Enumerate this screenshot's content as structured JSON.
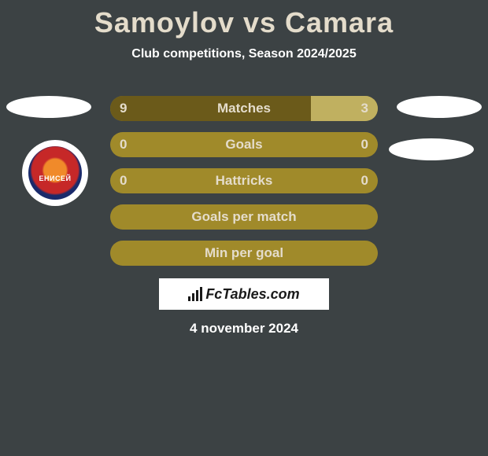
{
  "title": "Samoylov vs Camara",
  "subtitle": "Club competitions, Season 2024/2025",
  "date": "4 november 2024",
  "badge": {
    "text": "ЕНИСЕЙ"
  },
  "colors": {
    "bar_base": "#a08a2a",
    "bar_fill_left": "#6b5a1a",
    "bar_fill_right": "#c0b060",
    "bar_text": "#e4dccb",
    "background": "#3c4244"
  },
  "bars": [
    {
      "label": "Matches",
      "left": "9",
      "right": "3",
      "left_pct": 0.75,
      "right_pct": 0.25
    },
    {
      "label": "Goals",
      "left": "0",
      "right": "0",
      "left_pct": 0,
      "right_pct": 0
    },
    {
      "label": "Hattricks",
      "left": "0",
      "right": "0",
      "left_pct": 0,
      "right_pct": 0
    },
    {
      "label": "Goals per match",
      "left": "",
      "right": "",
      "left_pct": 0,
      "right_pct": 0
    },
    {
      "label": "Min per goal",
      "left": "",
      "right": "",
      "left_pct": 0,
      "right_pct": 0
    }
  ],
  "watermark": "FcTables.com"
}
